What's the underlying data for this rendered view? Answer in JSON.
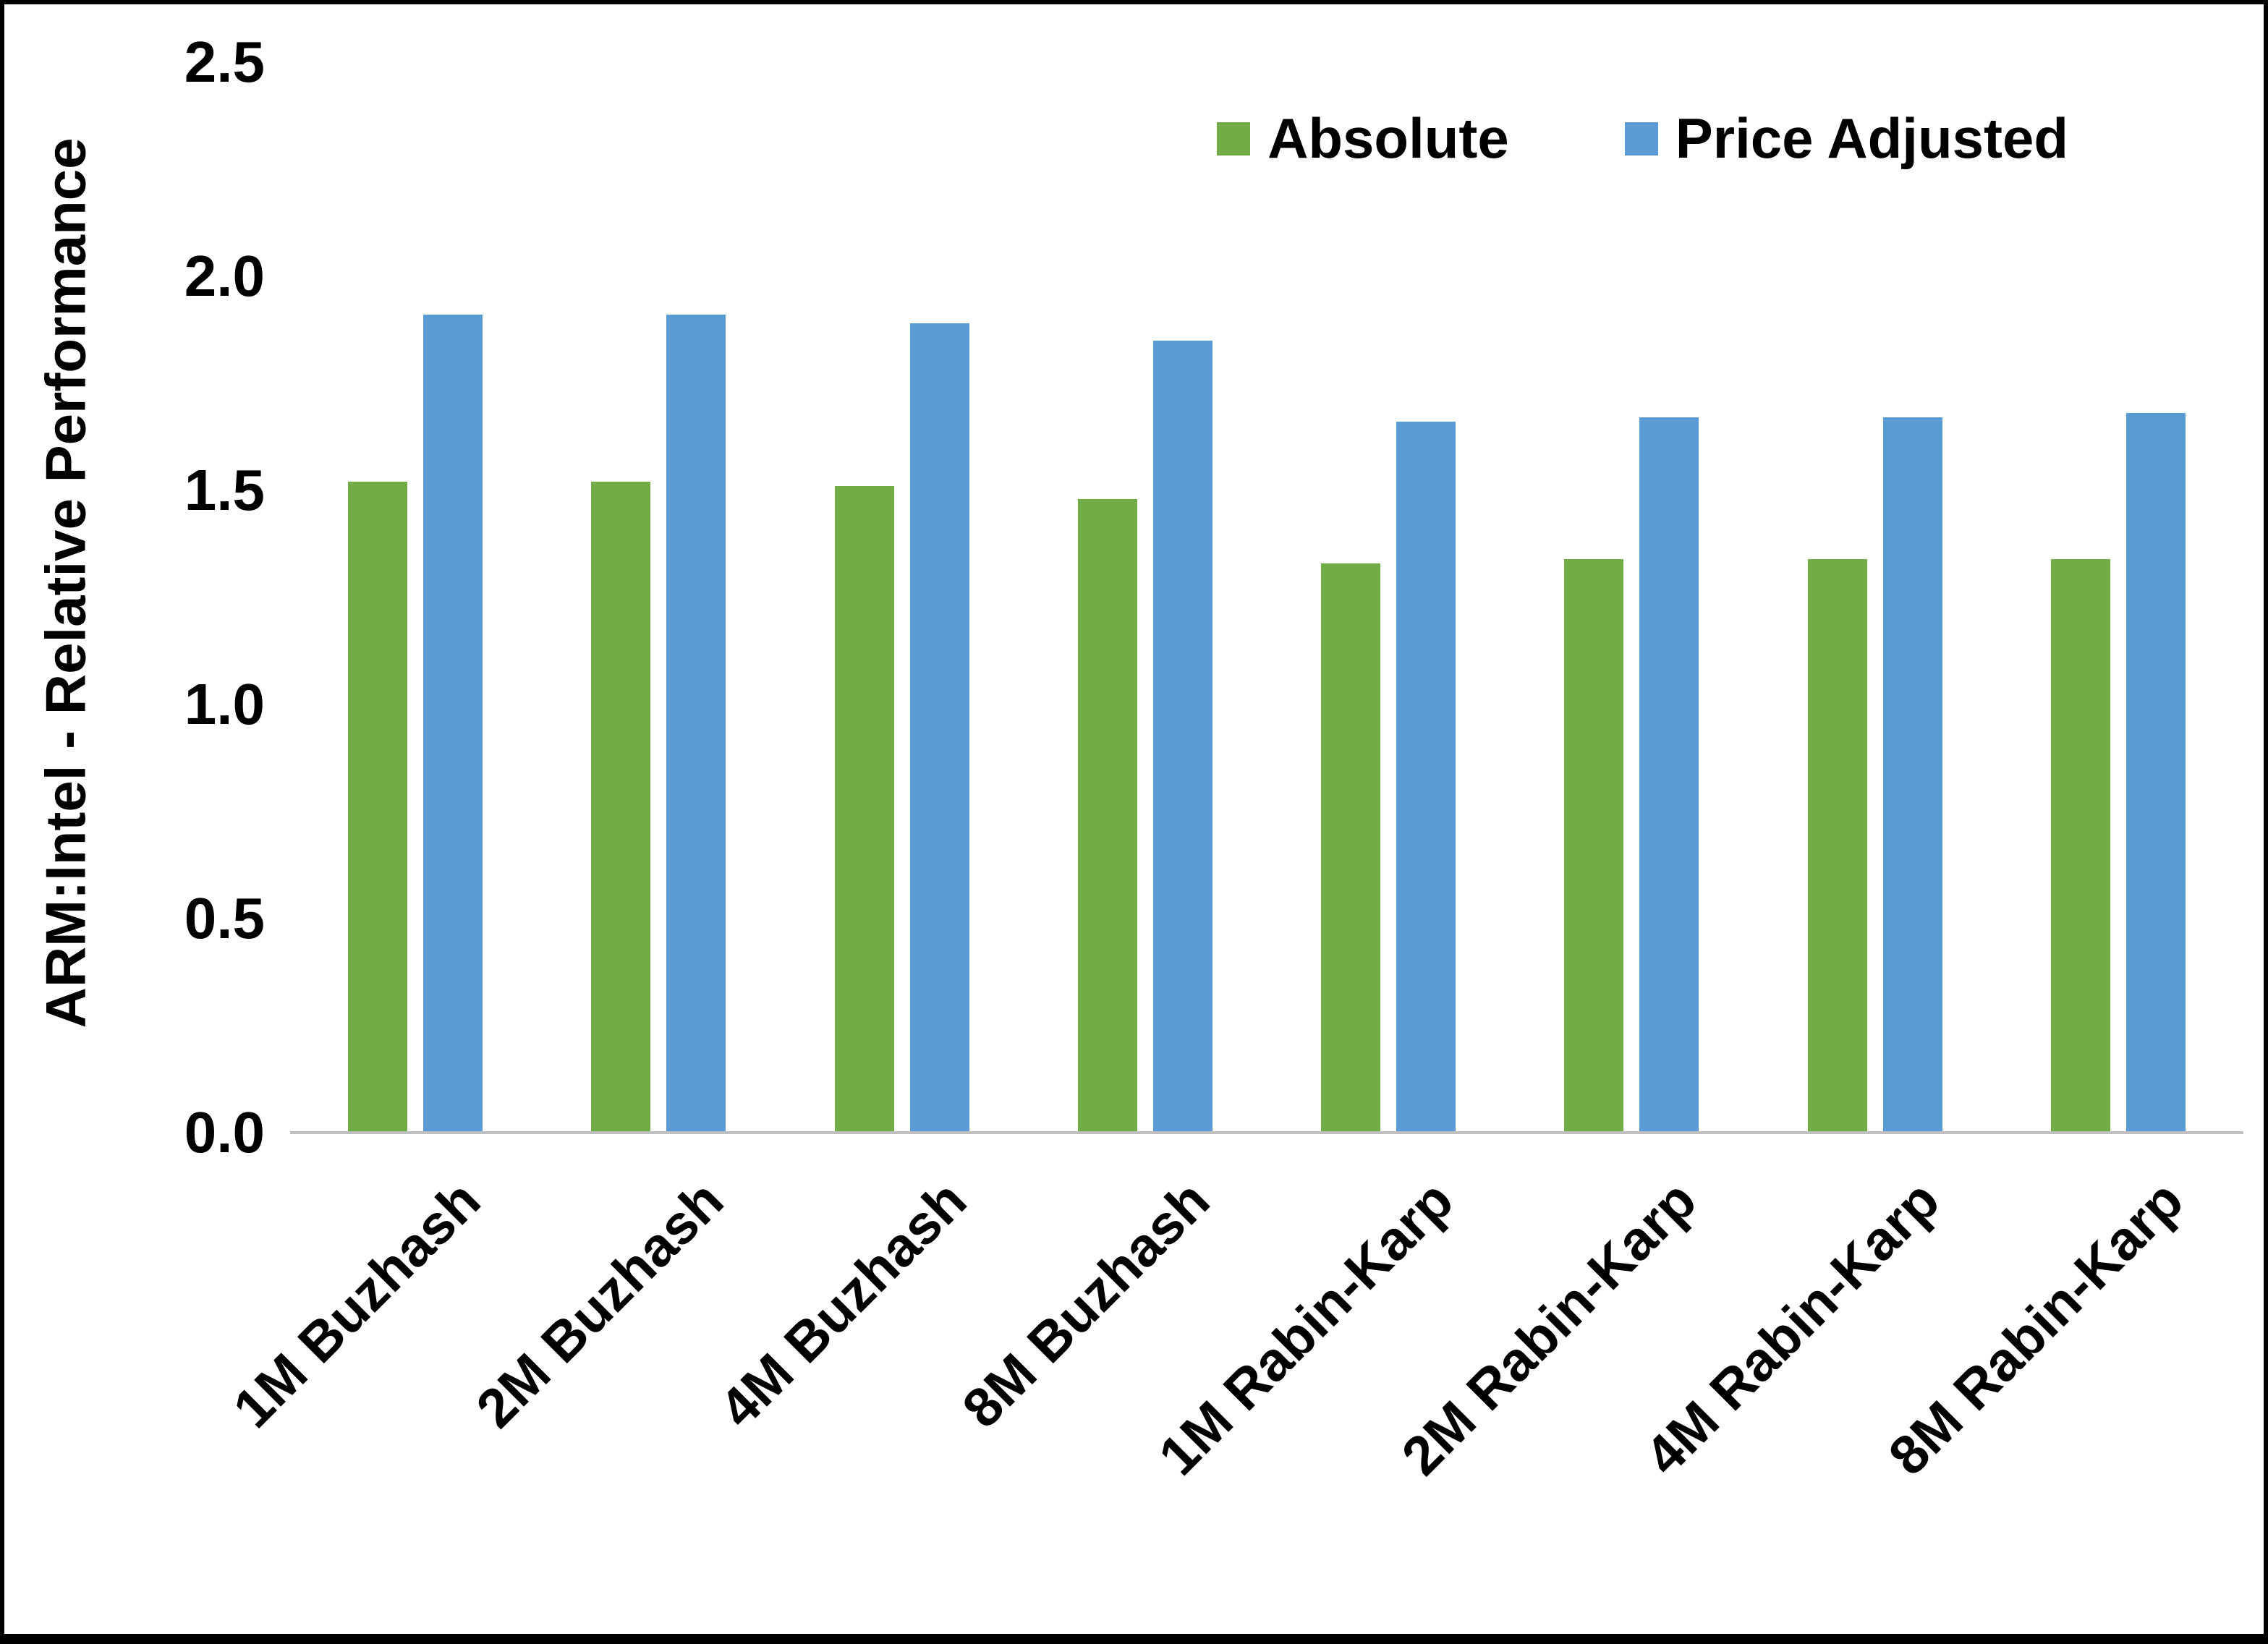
{
  "chart_data": {
    "type": "bar",
    "title": "",
    "xlabel": "",
    "ylabel": "ARM:Intel - Relative Performance",
    "ylim": [
      0,
      2.5
    ],
    "yticks": [
      0.0,
      0.5,
      1.0,
      1.5,
      2.0,
      2.5
    ],
    "ytick_labels": [
      "0.0",
      "0.5",
      "1.0",
      "1.5",
      "2.0",
      "2.5"
    ],
    "grid": false,
    "legend_position": "top-right",
    "categories": [
      "1M Buzhash",
      "2M Buzhash",
      "4M Buzhash",
      "8M Buzhash",
      "1M Rabin-Karp",
      "2M Rabin-Karp",
      "4M Rabin-Karp",
      "8M Rabin-Karp"
    ],
    "series": [
      {
        "name": "Absolute",
        "color": "#70AD47",
        "values": [
          1.52,
          1.52,
          1.51,
          1.48,
          1.33,
          1.34,
          1.34,
          1.34
        ]
      },
      {
        "name": "Price Adjusted",
        "color": "#5B9BD5",
        "values": [
          1.91,
          1.91,
          1.89,
          1.85,
          1.66,
          1.67,
          1.67,
          1.68
        ]
      }
    ]
  },
  "frame": {
    "background": "#FFFFFF",
    "border_color": "#000000",
    "baseline_color": "#BFBFBF"
  }
}
